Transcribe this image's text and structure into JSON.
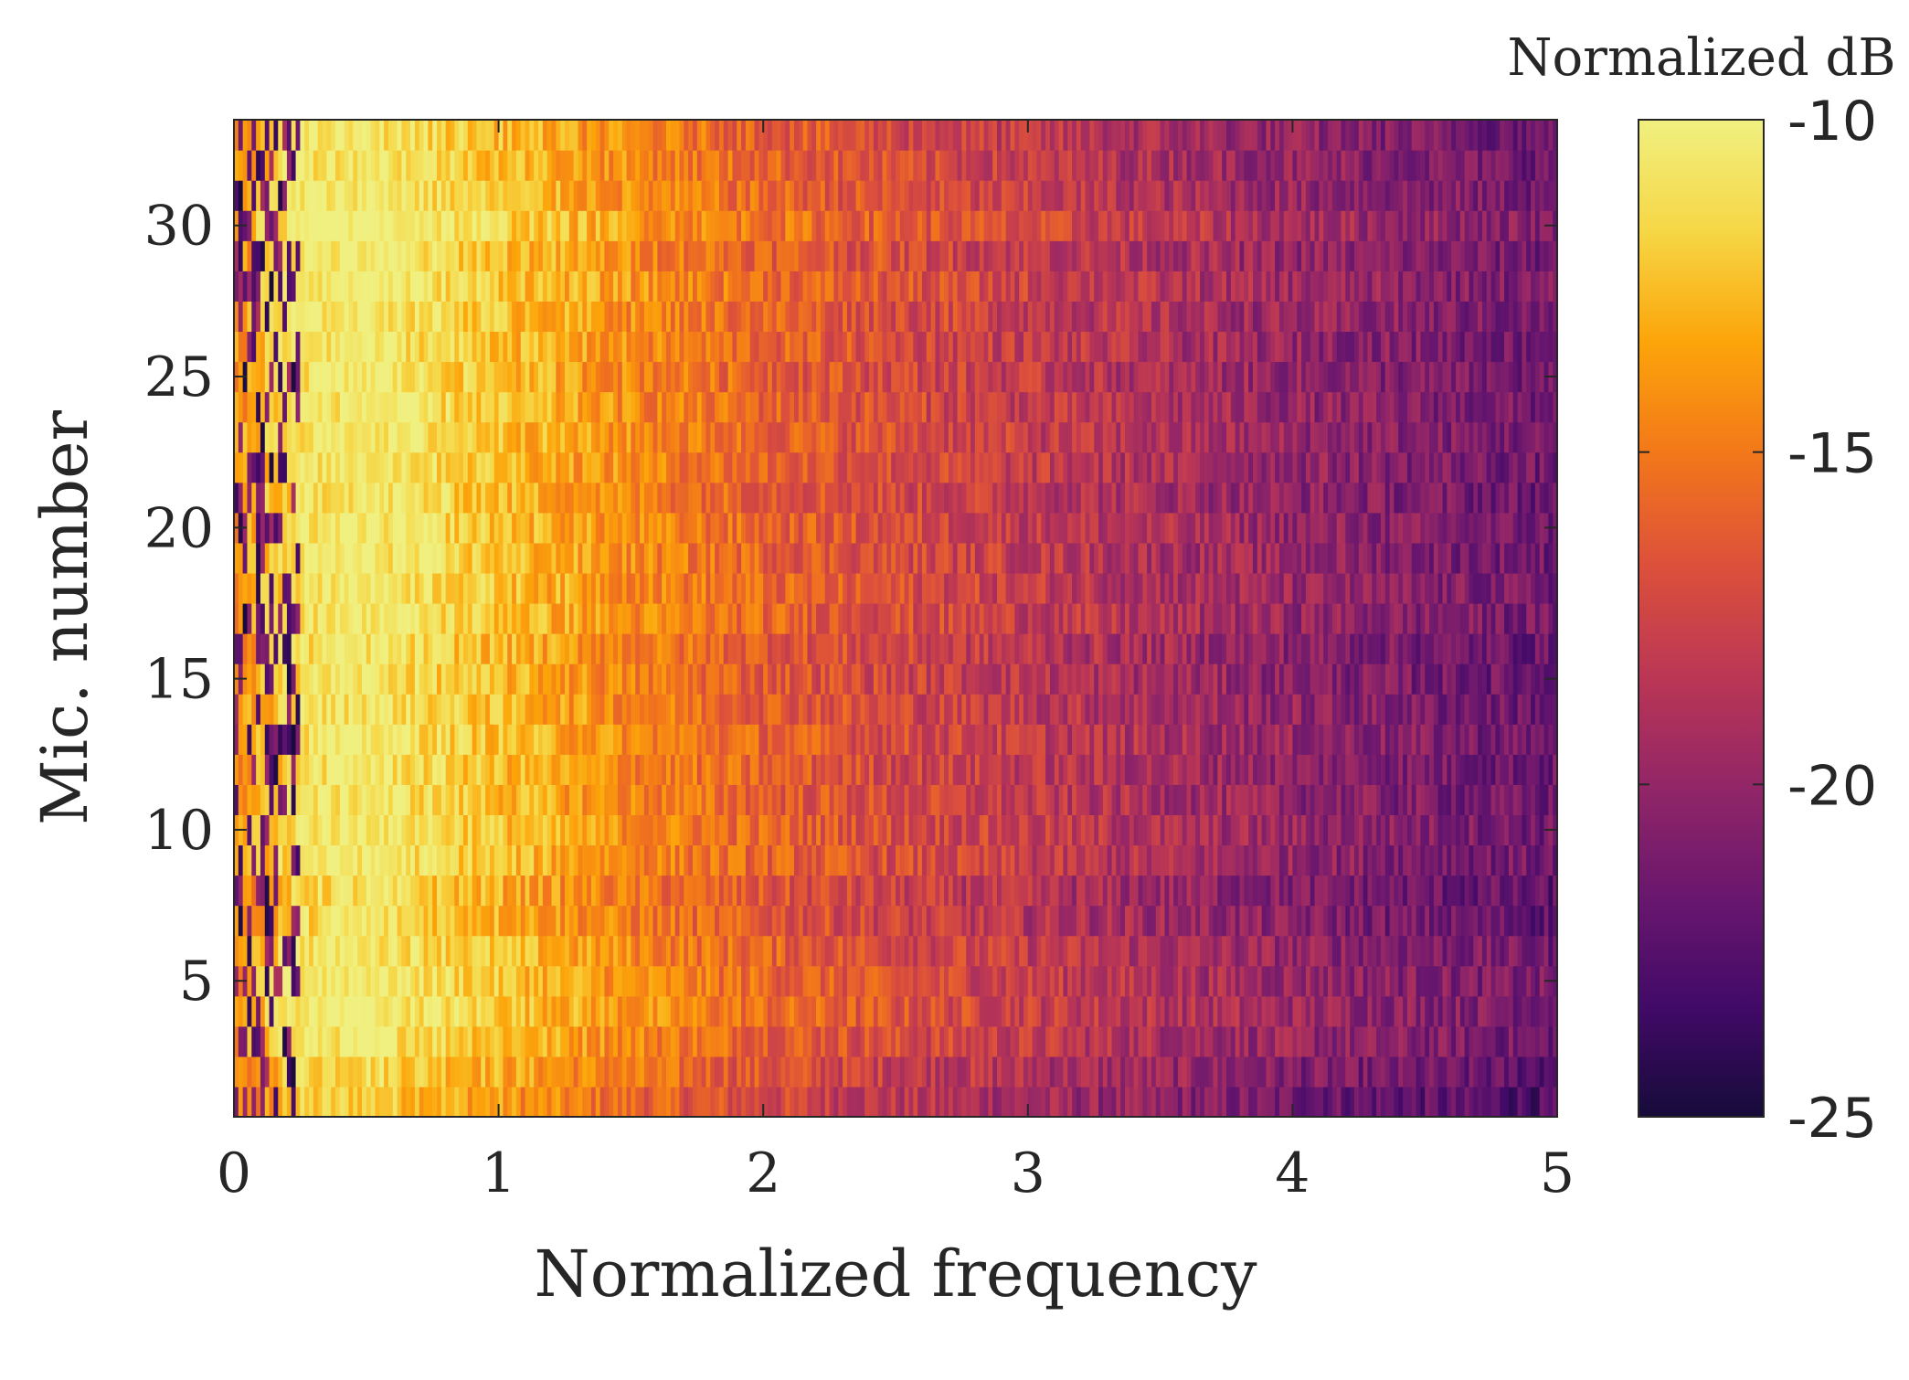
{
  "chart_data": {
    "type": "heatmap",
    "xlabel": "Normalized frequency",
    "ylabel": "Mic. number",
    "colorbar_label": "Normalized dB",
    "xlim": [
      0,
      5
    ],
    "ylim": [
      0.5,
      33.5
    ],
    "x_ticks": [
      "0",
      "1",
      "2",
      "3",
      "4",
      "5"
    ],
    "x_tick_values": [
      0,
      1,
      2,
      3,
      4,
      5
    ],
    "y_ticks": [
      "5",
      "10",
      "15",
      "20",
      "25",
      "30"
    ],
    "y_tick_values": [
      5,
      10,
      15,
      20,
      25,
      30
    ],
    "colorbar_ticks": [
      "-10",
      "-15",
      "-20",
      "-25"
    ],
    "colorbar_tick_values": [
      -10,
      -15,
      -20,
      -25
    ],
    "clim": [
      -25,
      -10
    ],
    "colormap": "inferno",
    "colormap_stops": [
      "#160b39",
      "#420a68",
      "#6a176e",
      "#932667",
      "#bc3754",
      "#dd513a",
      "#f37819",
      "#fca50a",
      "#f6d746",
      "#f0f080"
    ],
    "rows": 33,
    "row_labels": "microphones 1 to 33",
    "profile_frequencies": [
      0,
      0.25,
      0.5,
      0.75,
      1.0,
      1.25,
      1.5,
      2.0,
      2.5,
      3.0,
      3.5,
      4.0,
      4.5,
      5.0
    ],
    "profile_levels_db": [
      -14.5,
      -11.0,
      -10.5,
      -11.5,
      -12.5,
      -13.5,
      -14.5,
      -16.0,
      -17.2,
      -18.2,
      -19.2,
      -20.2,
      -21.0,
      -21.7
    ],
    "row_level_offsets_db": [
      -1.2,
      -0.6,
      0.2,
      0.6,
      0.4,
      0.2,
      -0.4,
      -0.6,
      0.2,
      0.3,
      0.0,
      0.0,
      0.2,
      0.0,
      -0.2,
      -0.2,
      0.3,
      0.3,
      0.2,
      0.2,
      0.0,
      0.2,
      0.3,
      0.2,
      0.1,
      0.2,
      0.3,
      0.6,
      0.2,
      1.0,
      0.3,
      0.2,
      0.0
    ],
    "low_frequency_speckle_below": 0.25,
    "noise_amplitude_db": 1.6
  }
}
